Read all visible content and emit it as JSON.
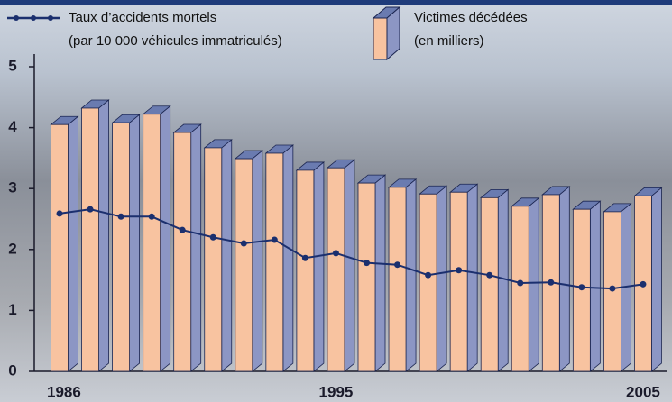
{
  "chart_data": {
    "type": "bar",
    "categories": [
      "1986",
      null,
      null,
      null,
      null,
      null,
      null,
      null,
      null,
      "1995",
      null,
      null,
      null,
      null,
      null,
      null,
      null,
      null,
      null,
      "2005"
    ],
    "series": [
      {
        "name": "Victimes décédées",
        "name_note": "(en milliers)",
        "type": "bar",
        "color": "#f8c3a0",
        "values": [
          4.05,
          4.32,
          4.08,
          4.22,
          3.92,
          3.67,
          3.49,
          3.58,
          3.3,
          3.34,
          3.09,
          3.02,
          2.91,
          2.94,
          2.85,
          2.71,
          2.9,
          2.66,
          2.62,
          2.88
        ]
      },
      {
        "name": "Taux d’accidents mortels",
        "name_note": "(par 10 000 véhicules immatriculés)",
        "type": "line",
        "color": "#1b2f6e",
        "values": [
          2.59,
          2.66,
          2.54,
          2.54,
          2.32,
          2.2,
          2.1,
          2.16,
          1.86,
          1.94,
          1.78,
          1.75,
          1.58,
          1.66,
          1.58,
          1.45,
          1.46,
          1.38,
          1.36,
          1.43
        ]
      }
    ],
    "ylim": [
      0,
      5
    ],
    "yticks": [
      0,
      1,
      2,
      3,
      4,
      5
    ]
  }
}
